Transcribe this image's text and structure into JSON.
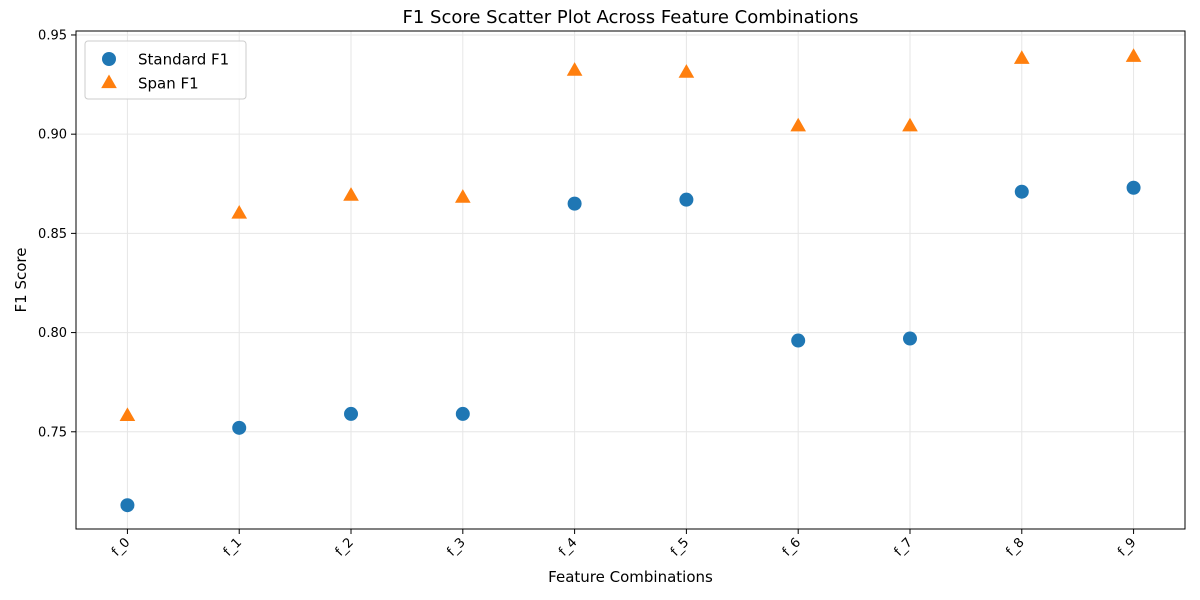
{
  "chart_data": {
    "type": "scatter",
    "title": "F1 Score Scatter Plot Across Feature Combinations",
    "xlabel": "Feature Combinations",
    "ylabel": "F1 Score",
    "categories": [
      "f_0",
      "f_1",
      "f_2",
      "f_3",
      "f_4",
      "f_5",
      "f_6",
      "f_7",
      "f_8",
      "f_9"
    ],
    "ylim": [
      0.701,
      0.952
    ],
    "yticks": [
      0.75,
      0.8,
      0.85,
      0.9,
      0.95
    ],
    "ytick_labels": [
      "0.75",
      "0.80",
      "0.85",
      "0.90",
      "0.95"
    ],
    "grid": true,
    "legend_position": "top-left",
    "series": [
      {
        "name": "Standard F1",
        "marker": "circle",
        "color": "#1f77b4",
        "values": [
          0.713,
          0.752,
          0.759,
          0.759,
          0.865,
          0.867,
          0.796,
          0.797,
          0.871,
          0.873
        ]
      },
      {
        "name": "Span F1",
        "marker": "triangle",
        "color": "#ff7f0e",
        "values": [
          0.758,
          0.86,
          0.869,
          0.868,
          0.932,
          0.931,
          0.904,
          0.904,
          0.938,
          0.939
        ]
      }
    ]
  }
}
